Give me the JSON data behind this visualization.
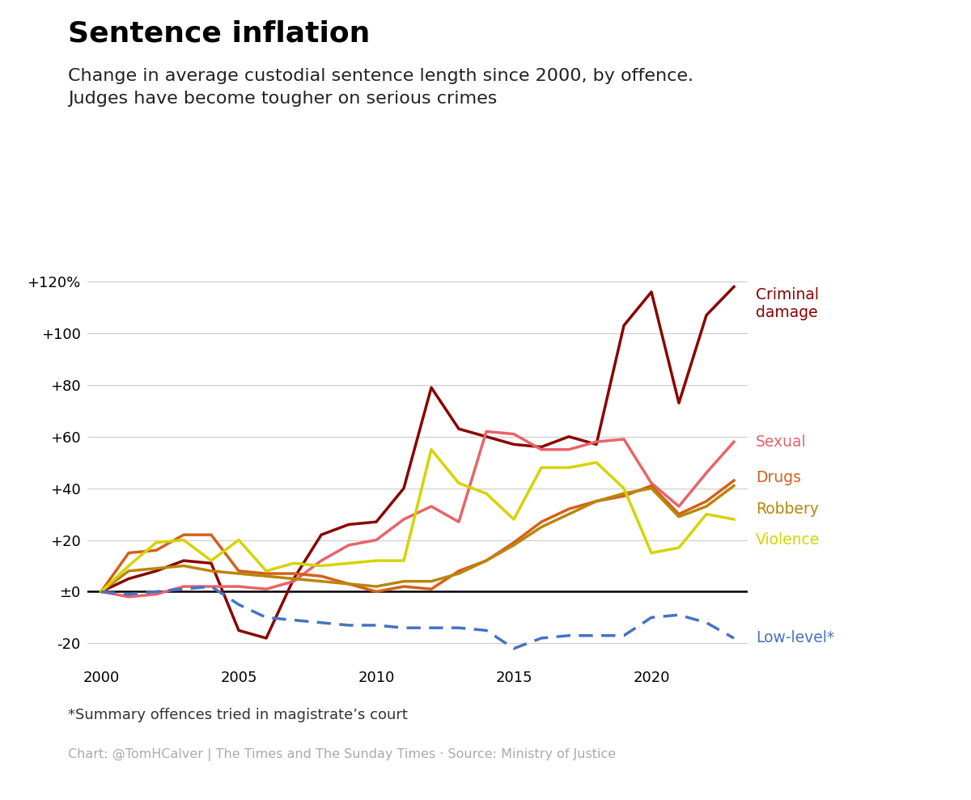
{
  "title": "Sentence inflation",
  "subtitle": "Change in average custodial sentence length since 2000, by offence.\nJudges have become tougher on serious crimes",
  "footnote": "*Summary offences tried in magistrate’s court",
  "source": "Chart: @TomHCalver | The Times and The Sunday Times · Source: Ministry of Justice",
  "years": [
    2000,
    2001,
    2002,
    2003,
    2004,
    2005,
    2006,
    2007,
    2008,
    2009,
    2010,
    2011,
    2012,
    2013,
    2014,
    2015,
    2016,
    2017,
    2018,
    2019,
    2020,
    2021,
    2022,
    2023
  ],
  "series": {
    "Criminal damage": {
      "color": "#8B0000",
      "linestyle": "solid",
      "linewidth": 2.5,
      "values": [
        0,
        5,
        8,
        12,
        11,
        -15,
        -18,
        5,
        22,
        26,
        27,
        40,
        79,
        63,
        60,
        57,
        56,
        60,
        57,
        103,
        116,
        73,
        107,
        118
      ]
    },
    "Sexual": {
      "color": "#e8636a",
      "linestyle": "solid",
      "linewidth": 2.5,
      "values": [
        0,
        -2,
        -1,
        2,
        2,
        2,
        1,
        4,
        12,
        18,
        20,
        28,
        33,
        27,
        62,
        61,
        55,
        55,
        58,
        59,
        42,
        33,
        46,
        58
      ]
    },
    "Drugs": {
      "color": "#d4601a",
      "linestyle": "solid",
      "linewidth": 2.5,
      "values": [
        0,
        15,
        16,
        22,
        22,
        8,
        7,
        7,
        6,
        3,
        0,
        2,
        1,
        8,
        12,
        19,
        27,
        32,
        35,
        37,
        41,
        30,
        35,
        43
      ]
    },
    "Robbery": {
      "color": "#b8860b",
      "linestyle": "solid",
      "linewidth": 2.5,
      "values": [
        0,
        8,
        9,
        10,
        8,
        7,
        6,
        5,
        4,
        3,
        2,
        4,
        4,
        7,
        12,
        18,
        25,
        30,
        35,
        38,
        40,
        29,
        33,
        41
      ]
    },
    "Violence": {
      "color": "#d4d400",
      "linestyle": "solid",
      "linewidth": 2.5,
      "values": [
        0,
        10,
        19,
        20,
        12,
        20,
        8,
        11,
        10,
        11,
        12,
        12,
        55,
        42,
        38,
        28,
        48,
        48,
        50,
        40,
        15,
        17,
        30,
        28
      ]
    },
    "Low-level*": {
      "color": "#4472c4",
      "linestyle": "dashed",
      "linewidth": 2.5,
      "values": [
        0,
        -1,
        0,
        1,
        2,
        -5,
        -10,
        -11,
        -12,
        -13,
        -13,
        -14,
        -14,
        -14,
        -15,
        -22,
        -18,
        -17,
        -17,
        -17,
        -10,
        -9,
        -12,
        -18
      ]
    }
  },
  "ylim": [
    -28,
    133
  ],
  "yticks": [
    -20,
    0,
    20,
    40,
    60,
    80,
    100,
    120
  ],
  "ytick_labels": [
    "-20",
    "±0",
    "+20",
    "+40",
    "+60",
    "+80",
    "+100",
    "+120%"
  ],
  "xlim": [
    1999.5,
    2023.5
  ],
  "xticks": [
    2000,
    2005,
    2010,
    2015,
    2020
  ],
  "background_color": "#ffffff",
  "grid_color": "#cccccc",
  "zero_line_color": "#000000",
  "legend": {
    "Criminal damage": {
      "color": "#8B0000",
      "y": 118,
      "label": "Criminal\ndamage",
      "va": "top"
    },
    "Sexual": {
      "color": "#e8636a",
      "y": 58,
      "label": "Sexual",
      "va": "center"
    },
    "Drugs": {
      "color": "#d4601a",
      "y": 44,
      "label": "Drugs",
      "va": "center"
    },
    "Robbery": {
      "color": "#b8860b",
      "y": 32,
      "label": "Robbery",
      "va": "center"
    },
    "Violence": {
      "color": "#d4d400",
      "y": 20,
      "label": "Violence",
      "va": "center"
    },
    "Low-level*": {
      "color": "#4472c4",
      "y": -18,
      "label": "Low-level*",
      "va": "center"
    }
  }
}
